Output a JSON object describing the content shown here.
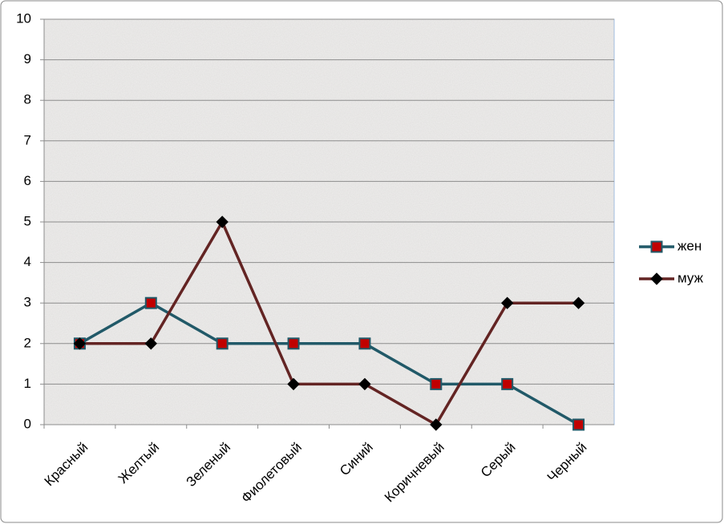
{
  "chart_data": {
    "type": "line",
    "categories": [
      "Красный",
      "Желтый",
      "Зеленый",
      "Фиолетовый",
      "Синий",
      "Коричневый",
      "Серый",
      "Черный"
    ],
    "series": [
      {
        "name": "жен",
        "color": "#215968",
        "marker": "square",
        "marker_color": "#c00000",
        "values": [
          2,
          3,
          2,
          2,
          2,
          1,
          1,
          0
        ]
      },
      {
        "name": "муж",
        "color": "#632423",
        "marker": "diamond",
        "marker_color": "#000000",
        "values": [
          2,
          2,
          5,
          1,
          1,
          0,
          3,
          3
        ]
      }
    ],
    "ylim": [
      0,
      10
    ],
    "yticks": [
      0,
      1,
      2,
      3,
      4,
      5,
      6,
      7,
      8,
      9,
      10
    ],
    "grid": true,
    "legend": "right"
  }
}
